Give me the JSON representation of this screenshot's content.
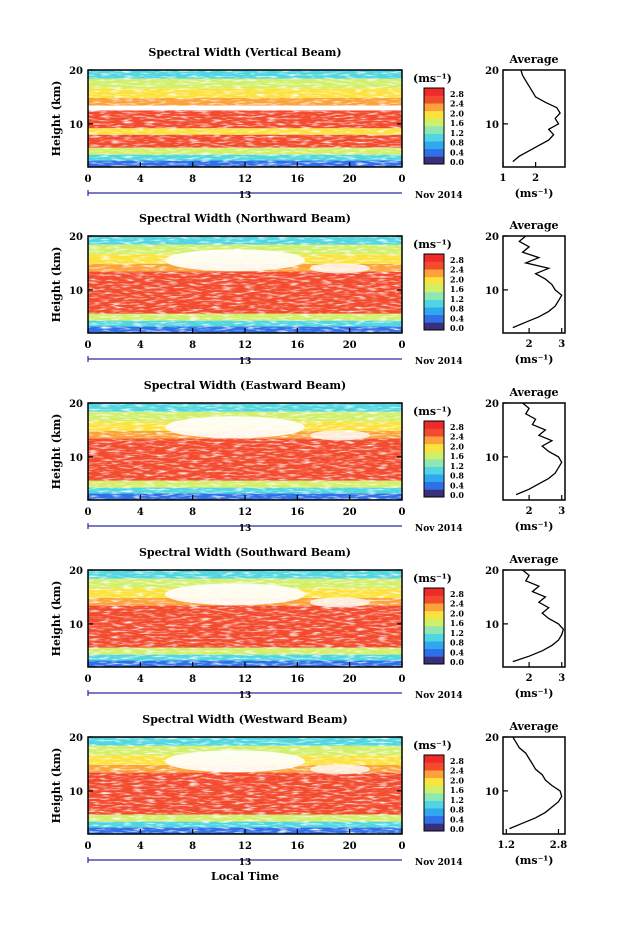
{
  "colorbar_levels": [
    "0.0",
    "0.4",
    "0.8",
    "1.2",
    "1.6",
    "2.0",
    "2.4",
    "2.8"
  ],
  "colorbar_unit": "(ms⁻¹)",
  "colorbar_colors": [
    "#3a2f7a",
    "#2f6fe8",
    "#2fa8f0",
    "#4fd6e0",
    "#8fe7b4",
    "#d2ef6a",
    "#fbe23c",
    "#fba23a",
    "#f34b2e",
    "#ee2a2a"
  ],
  "time_ticks": [
    "0",
    "4",
    "8",
    "12",
    "16",
    "20",
    "0"
  ],
  "date_day": "13",
  "date_month_year": "Nov 2014",
  "height_ticks": [
    "10",
    "20"
  ],
  "ylabel": "Height (km)",
  "xlabel": "Local Time",
  "average_title": "Average",
  "average_unit": "(ms⁻¹)",
  "panels": [
    {
      "title": "Spectral Width (Vertical Beam)",
      "avg_xticks": [
        "1",
        "2"
      ],
      "avg_xlim": [
        1.0,
        2.9
      ],
      "avg_profile": [
        [
          1.3,
          3
        ],
        [
          1.5,
          4
        ],
        [
          1.8,
          5
        ],
        [
          2.1,
          6
        ],
        [
          2.4,
          7
        ],
        [
          2.55,
          8
        ],
        [
          2.4,
          9
        ],
        [
          2.7,
          10
        ],
        [
          2.6,
          11
        ],
        [
          2.75,
          12
        ],
        [
          2.65,
          13
        ],
        [
          2.3,
          14
        ],
        [
          2.0,
          15
        ],
        [
          1.9,
          16
        ],
        [
          1.8,
          17
        ],
        [
          1.7,
          18
        ],
        [
          1.6,
          19
        ],
        [
          1.55,
          20
        ]
      ]
    },
    {
      "title": "Spectral Width (Northward Beam)",
      "avg_xticks": [
        "2",
        "3"
      ],
      "avg_xlim": [
        1.2,
        3.1
      ],
      "avg_profile": [
        [
          1.5,
          3
        ],
        [
          1.9,
          4
        ],
        [
          2.3,
          5
        ],
        [
          2.6,
          6
        ],
        [
          2.8,
          7
        ],
        [
          2.9,
          8
        ],
        [
          3.0,
          9
        ],
        [
          2.8,
          10
        ],
        [
          2.7,
          11
        ],
        [
          2.5,
          12
        ],
        [
          2.2,
          13
        ],
        [
          2.6,
          14
        ],
        [
          1.9,
          15
        ],
        [
          2.3,
          16
        ],
        [
          1.8,
          17
        ],
        [
          2.0,
          18
        ],
        [
          1.7,
          19
        ],
        [
          1.9,
          20
        ]
      ]
    },
    {
      "title": "Spectral Width (Eastward Beam)",
      "avg_xticks": [
        "2",
        "3"
      ],
      "avg_xlim": [
        1.2,
        3.1
      ],
      "avg_profile": [
        [
          1.6,
          3
        ],
        [
          2.0,
          4
        ],
        [
          2.3,
          5
        ],
        [
          2.6,
          6
        ],
        [
          2.8,
          7
        ],
        [
          2.9,
          8
        ],
        [
          3.0,
          9
        ],
        [
          2.9,
          10
        ],
        [
          2.6,
          11
        ],
        [
          2.4,
          12
        ],
        [
          2.7,
          13
        ],
        [
          2.3,
          14
        ],
        [
          2.5,
          15
        ],
        [
          2.1,
          16
        ],
        [
          2.2,
          17
        ],
        [
          1.9,
          18
        ],
        [
          2.0,
          19
        ],
        [
          1.8,
          20
        ]
      ]
    },
    {
      "title": "Spectral Width (Southward Beam)",
      "avg_xticks": [
        "2",
        "3"
      ],
      "avg_xlim": [
        1.2,
        3.1
      ],
      "avg_profile": [
        [
          1.5,
          3
        ],
        [
          2.0,
          4
        ],
        [
          2.4,
          5
        ],
        [
          2.7,
          6
        ],
        [
          2.9,
          7
        ],
        [
          3.0,
          8
        ],
        [
          3.05,
          9
        ],
        [
          2.9,
          10
        ],
        [
          2.6,
          11
        ],
        [
          2.4,
          12
        ],
        [
          2.6,
          13
        ],
        [
          2.3,
          14
        ],
        [
          2.5,
          15
        ],
        [
          2.1,
          16
        ],
        [
          2.3,
          17
        ],
        [
          1.9,
          18
        ],
        [
          2.0,
          19
        ],
        [
          1.8,
          20
        ]
      ]
    },
    {
      "title": "Spectral Width (Westward Beam)",
      "avg_xticks": [
        "1.2",
        "2.8"
      ],
      "avg_xlim": [
        1.1,
        3.0
      ],
      "avg_profile": [
        [
          1.3,
          3
        ],
        [
          1.7,
          4
        ],
        [
          2.1,
          5
        ],
        [
          2.4,
          6
        ],
        [
          2.6,
          7
        ],
        [
          2.8,
          8
        ],
        [
          2.9,
          9
        ],
        [
          2.85,
          10
        ],
        [
          2.6,
          11
        ],
        [
          2.4,
          12
        ],
        [
          2.3,
          13
        ],
        [
          2.1,
          14
        ],
        [
          2.0,
          15
        ],
        [
          1.9,
          16
        ],
        [
          1.8,
          17
        ],
        [
          1.6,
          18
        ],
        [
          1.5,
          19
        ],
        [
          1.4,
          20
        ]
      ]
    }
  ],
  "chart_data": {
    "type": "heatmap",
    "title": "Spectral Width",
    "xlabel": "Local Time",
    "ylabel": "Height (km)",
    "xlim": [
      0,
      24
    ],
    "ylim": [
      2,
      20
    ],
    "colorbar_range": [
      0.0,
      3.0
    ],
    "series": [
      {
        "name": "Spectral Width (Vertical Beam)"
      },
      {
        "name": "Spectral Width (Northward Beam)"
      },
      {
        "name": "Spectral Width (Eastward Beam)"
      },
      {
        "name": "Spectral Width (Southward Beam)"
      },
      {
        "name": "Spectral Width (Westward Beam)"
      }
    ]
  }
}
